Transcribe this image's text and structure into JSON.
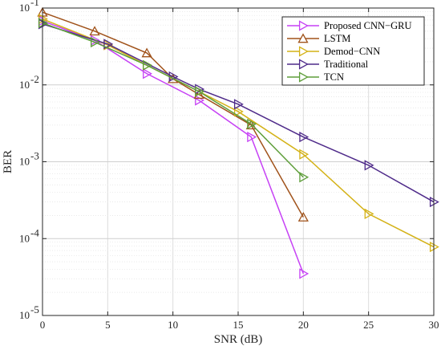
{
  "chart_data": {
    "type": "line",
    "xlabel": "SNR (dB)",
    "ylabel": "BER",
    "xlim": [
      0,
      30
    ],
    "ylim": [
      1e-05,
      0.1
    ],
    "yscale": "log",
    "grid": true,
    "legend_position": "top-right",
    "x_ticks": [
      0,
      5,
      10,
      15,
      20,
      25,
      30
    ],
    "x_tick_labels": [
      "0",
      "5",
      "10",
      "15",
      "20",
      "25",
      "30"
    ],
    "y_ticks": [
      {
        "value": 0.1,
        "base": "10",
        "exp": "-1"
      },
      {
        "value": 0.01,
        "base": "10",
        "exp": "-2"
      },
      {
        "value": 0.001,
        "base": "10",
        "exp": "-3"
      },
      {
        "value": 0.0001,
        "base": "10",
        "exp": "-4"
      },
      {
        "value": 1e-05,
        "base": "10",
        "exp": "-5"
      }
    ],
    "series": [
      {
        "name": "Proposed CNN−GRU",
        "color": "#c641f5",
        "marker": "triangle-right",
        "points": [
          [
            0,
            0.068
          ],
          [
            4,
            0.038
          ],
          [
            8,
            0.014
          ],
          [
            12,
            0.0063
          ],
          [
            16,
            0.0021
          ],
          [
            20,
            3.5e-05
          ]
        ]
      },
      {
        "name": "LSTM",
        "color": "#a0521a",
        "marker": "triangle-up",
        "points": [
          [
            0,
            0.088
          ],
          [
            4,
            0.05
          ],
          [
            8,
            0.026
          ],
          [
            10,
            0.012
          ],
          [
            12,
            0.0075
          ],
          [
            16,
            0.003
          ],
          [
            20,
            0.00019
          ]
        ]
      },
      {
        "name": "Demod−CNN",
        "color": "#d4b217",
        "marker": "triangle-right",
        "points": [
          [
            0,
            0.072
          ],
          [
            5,
            0.033
          ],
          [
            8,
            0.018
          ],
          [
            12,
            0.0082
          ],
          [
            15,
            0.0045
          ],
          [
            20,
            0.00125
          ],
          [
            25,
            0.00021
          ],
          [
            30,
            7.8e-05
          ]
        ]
      },
      {
        "name": "Traditional",
        "color": "#4f2b8a",
        "marker": "triangle-right",
        "points": [
          [
            0,
            0.062
          ],
          [
            5,
            0.034
          ],
          [
            10,
            0.0128
          ],
          [
            12,
            0.0088
          ],
          [
            15,
            0.0056
          ],
          [
            20,
            0.0021
          ],
          [
            25,
            0.0009
          ],
          [
            30,
            0.0003
          ]
        ]
      },
      {
        "name": "TCN",
        "color": "#5e9e3a",
        "marker": "triangle-right",
        "points": [
          [
            0,
            0.064
          ],
          [
            4,
            0.036
          ],
          [
            8,
            0.018
          ],
          [
            12,
            0.0082
          ],
          [
            16,
            0.0031
          ],
          [
            20,
            0.00063
          ]
        ]
      }
    ]
  }
}
